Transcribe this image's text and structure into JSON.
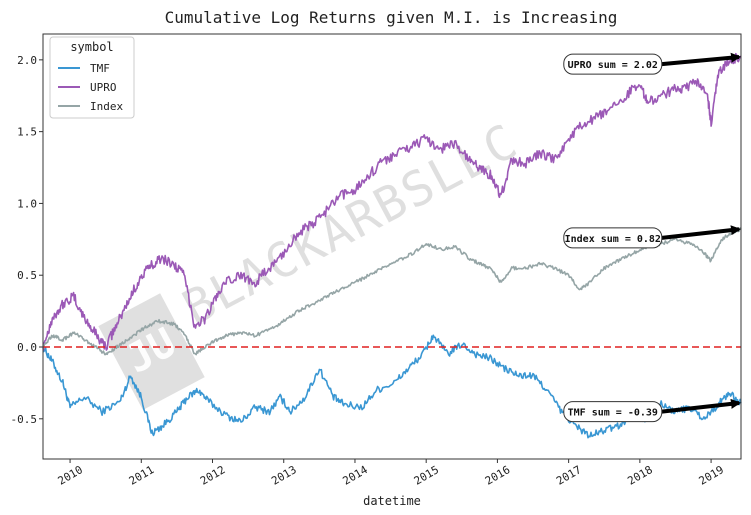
{
  "chart_data": {
    "type": "line",
    "title": "Cumulative Log Returns given M.I. is Increasing",
    "xlabel": "datetime",
    "ylabel": "",
    "xlim": [
      2009.62,
      2019.42
    ],
    "ylim": [
      -0.78,
      2.18
    ],
    "x_ticks": [
      2010,
      2011,
      2012,
      2013,
      2014,
      2015,
      2016,
      2017,
      2018,
      2019
    ],
    "x_tick_labels": [
      "2010",
      "2011",
      "2012",
      "2013",
      "2014",
      "2015",
      "2016",
      "2017",
      "2018",
      "2019"
    ],
    "y_ticks": [
      -0.5,
      0.0,
      0.5,
      1.0,
      1.5,
      2.0
    ],
    "y_tick_labels": [
      "-0.5",
      "0.0",
      "0.5",
      "1.0",
      "1.5",
      "2.0"
    ],
    "legend": {
      "title": "symbol",
      "position": "top-left",
      "entries": [
        "TMF",
        "UPRO",
        "Index"
      ]
    },
    "reference_line": {
      "y": 0.0,
      "color": "#e02020",
      "style": "dashed"
    },
    "series": [
      {
        "name": "TMF",
        "color": "#3a97d3",
        "points": [
          [
            2009.62,
            0.0
          ],
          [
            2009.75,
            -0.1
          ],
          [
            2009.9,
            -0.25
          ],
          [
            2010.0,
            -0.42
          ],
          [
            2010.2,
            -0.35
          ],
          [
            2010.45,
            -0.45
          ],
          [
            2010.7,
            -0.38
          ],
          [
            2010.85,
            -0.2
          ],
          [
            2011.0,
            -0.35
          ],
          [
            2011.15,
            -0.6
          ],
          [
            2011.3,
            -0.55
          ],
          [
            2011.5,
            -0.45
          ],
          [
            2011.65,
            -0.35
          ],
          [
            2011.8,
            -0.3
          ],
          [
            2011.95,
            -0.38
          ],
          [
            2012.2,
            -0.48
          ],
          [
            2012.4,
            -0.52
          ],
          [
            2012.6,
            -0.42
          ],
          [
            2012.8,
            -0.45
          ],
          [
            2012.95,
            -0.35
          ],
          [
            2013.1,
            -0.45
          ],
          [
            2013.3,
            -0.35
          ],
          [
            2013.5,
            -0.15
          ],
          [
            2013.7,
            -0.35
          ],
          [
            2013.85,
            -0.4
          ],
          [
            2014.1,
            -0.42
          ],
          [
            2014.3,
            -0.3
          ],
          [
            2014.55,
            -0.25
          ],
          [
            2014.75,
            -0.15
          ],
          [
            2014.95,
            -0.05
          ],
          [
            2015.1,
            0.08
          ],
          [
            2015.3,
            -0.05
          ],
          [
            2015.5,
            0.02
          ],
          [
            2015.7,
            -0.05
          ],
          [
            2015.9,
            -0.08
          ],
          [
            2016.1,
            -0.15
          ],
          [
            2016.3,
            -0.2
          ],
          [
            2016.5,
            -0.2
          ],
          [
            2016.7,
            -0.3
          ],
          [
            2016.9,
            -0.45
          ],
          [
            2017.1,
            -0.55
          ],
          [
            2017.3,
            -0.62
          ],
          [
            2017.5,
            -0.58
          ],
          [
            2017.7,
            -0.55
          ],
          [
            2017.9,
            -0.48
          ],
          [
            2018.1,
            -0.5
          ],
          [
            2018.3,
            -0.4
          ],
          [
            2018.5,
            -0.45
          ],
          [
            2018.7,
            -0.42
          ],
          [
            2018.9,
            -0.5
          ],
          [
            2019.1,
            -0.4
          ],
          [
            2019.25,
            -0.32
          ],
          [
            2019.42,
            -0.39
          ]
        ],
        "annotation": "TMF sum = -0.39"
      },
      {
        "name": "UPRO",
        "color": "#9b59b6",
        "points": [
          [
            2009.62,
            0.0
          ],
          [
            2009.75,
            0.2
          ],
          [
            2009.9,
            0.3
          ],
          [
            2010.05,
            0.35
          ],
          [
            2010.2,
            0.2
          ],
          [
            2010.35,
            0.1
          ],
          [
            2010.5,
            0.0
          ],
          [
            2010.65,
            0.15
          ],
          [
            2010.8,
            0.3
          ],
          [
            2010.95,
            0.45
          ],
          [
            2011.1,
            0.55
          ],
          [
            2011.25,
            0.62
          ],
          [
            2011.45,
            0.58
          ],
          [
            2011.6,
            0.5
          ],
          [
            2011.75,
            0.15
          ],
          [
            2011.9,
            0.2
          ],
          [
            2012.05,
            0.35
          ],
          [
            2012.2,
            0.45
          ],
          [
            2012.4,
            0.5
          ],
          [
            2012.6,
            0.45
          ],
          [
            2012.8,
            0.55
          ],
          [
            2013.0,
            0.65
          ],
          [
            2013.2,
            0.8
          ],
          [
            2013.4,
            0.85
          ],
          [
            2013.6,
            0.95
          ],
          [
            2013.8,
            1.05
          ],
          [
            2014.0,
            1.1
          ],
          [
            2014.2,
            1.2
          ],
          [
            2014.4,
            1.3
          ],
          [
            2014.6,
            1.35
          ],
          [
            2014.8,
            1.4
          ],
          [
            2015.0,
            1.45
          ],
          [
            2015.2,
            1.38
          ],
          [
            2015.4,
            1.42
          ],
          [
            2015.6,
            1.3
          ],
          [
            2015.75,
            1.25
          ],
          [
            2015.9,
            1.2
          ],
          [
            2016.05,
            1.05
          ],
          [
            2016.2,
            1.3
          ],
          [
            2016.4,
            1.28
          ],
          [
            2016.6,
            1.35
          ],
          [
            2016.8,
            1.3
          ],
          [
            2017.0,
            1.45
          ],
          [
            2017.2,
            1.55
          ],
          [
            2017.4,
            1.6
          ],
          [
            2017.6,
            1.65
          ],
          [
            2017.8,
            1.75
          ],
          [
            2018.0,
            1.85
          ],
          [
            2018.1,
            1.7
          ],
          [
            2018.3,
            1.75
          ],
          [
            2018.5,
            1.8
          ],
          [
            2018.65,
            1.8
          ],
          [
            2018.8,
            1.85
          ],
          [
            2018.95,
            1.75
          ],
          [
            2019.0,
            1.55
          ],
          [
            2019.1,
            1.9
          ],
          [
            2019.25,
            2.0
          ],
          [
            2019.42,
            2.02
          ]
        ],
        "annotation": "UPRO sum = 2.02"
      },
      {
        "name": "Index",
        "color": "#95a5a6",
        "points": [
          [
            2009.62,
            0.0
          ],
          [
            2009.75,
            0.08
          ],
          [
            2009.9,
            0.05
          ],
          [
            2010.05,
            0.1
          ],
          [
            2010.2,
            0.05
          ],
          [
            2010.35,
            0.0
          ],
          [
            2010.5,
            -0.05
          ],
          [
            2010.65,
            0.0
          ],
          [
            2010.8,
            0.05
          ],
          [
            2010.95,
            0.1
          ],
          [
            2011.1,
            0.15
          ],
          [
            2011.25,
            0.18
          ],
          [
            2011.45,
            0.16
          ],
          [
            2011.6,
            0.1
          ],
          [
            2011.75,
            -0.05
          ],
          [
            2011.9,
            0.0
          ],
          [
            2012.05,
            0.05
          ],
          [
            2012.2,
            0.08
          ],
          [
            2012.4,
            0.1
          ],
          [
            2012.6,
            0.08
          ],
          [
            2012.8,
            0.12
          ],
          [
            2013.0,
            0.18
          ],
          [
            2013.2,
            0.25
          ],
          [
            2013.4,
            0.3
          ],
          [
            2013.6,
            0.35
          ],
          [
            2013.8,
            0.4
          ],
          [
            2014.0,
            0.45
          ],
          [
            2014.2,
            0.5
          ],
          [
            2014.4,
            0.55
          ],
          [
            2014.6,
            0.6
          ],
          [
            2014.8,
            0.65
          ],
          [
            2015.0,
            0.72
          ],
          [
            2015.2,
            0.68
          ],
          [
            2015.4,
            0.7
          ],
          [
            2015.6,
            0.62
          ],
          [
            2015.75,
            0.58
          ],
          [
            2015.9,
            0.55
          ],
          [
            2016.05,
            0.45
          ],
          [
            2016.2,
            0.55
          ],
          [
            2016.4,
            0.55
          ],
          [
            2016.6,
            0.58
          ],
          [
            2016.8,
            0.55
          ],
          [
            2017.0,
            0.5
          ],
          [
            2017.15,
            0.4
          ],
          [
            2017.3,
            0.45
          ],
          [
            2017.5,
            0.55
          ],
          [
            2017.7,
            0.6
          ],
          [
            2017.9,
            0.65
          ],
          [
            2018.1,
            0.7
          ],
          [
            2018.3,
            0.72
          ],
          [
            2018.5,
            0.75
          ],
          [
            2018.7,
            0.72
          ],
          [
            2018.85,
            0.68
          ],
          [
            2019.0,
            0.6
          ],
          [
            2019.15,
            0.75
          ],
          [
            2019.3,
            0.8
          ],
          [
            2019.42,
            0.82
          ]
        ],
        "annotation": "Index sum = 0.82"
      }
    ],
    "annotations": [
      {
        "series": "UPRO",
        "text": "UPRO sum = 2.02",
        "box_x": 2017.62,
        "box_y": 1.97,
        "arrow_to": [
          2019.42,
          2.02
        ]
      },
      {
        "series": "Index",
        "text": "Index sum = 0.82",
        "box_x": 2017.62,
        "box_y": 0.76,
        "arrow_to": [
          2019.42,
          0.82
        ]
      },
      {
        "series": "TMF",
        "text": "TMF sum = -0.39",
        "box_x": 2017.62,
        "box_y": -0.45,
        "arrow_to": [
          2019.42,
          -0.39
        ]
      }
    ],
    "watermark": "BLACKARBSLLC"
  }
}
